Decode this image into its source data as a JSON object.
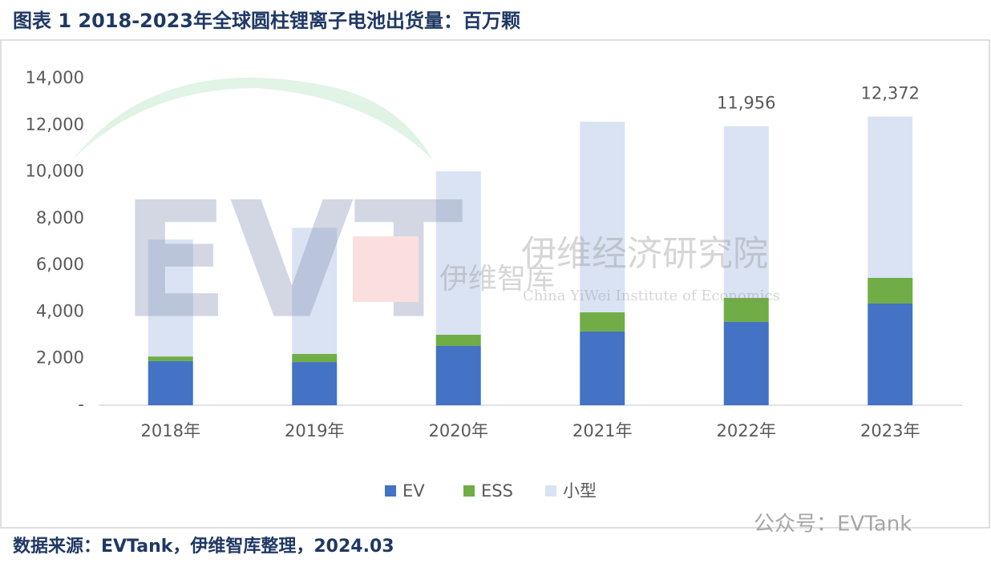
{
  "header": {
    "title": "图表 1 2018-2023年全球圆柱锂离子电池出货量：百万颗"
  },
  "source": "数据来源：EVTank，伊维智库整理，2024.03",
  "watermark": {
    "name": "伊维经济研究院",
    "english": "China YiWei Institute of Economics",
    "short": "伊维智库",
    "account": "公众号：EVTank"
  },
  "chart_data": {
    "type": "stacked-bar",
    "categories": [
      "2018年",
      "2019年",
      "2020年",
      "2021年",
      "2022年",
      "2023年"
    ],
    "series": [
      {
        "name": "EV",
        "color": "#4472c4",
        "values": [
          1890,
          1850,
          2540,
          3160,
          3570,
          4360
        ]
      },
      {
        "name": "ESS",
        "color": "#70ad47",
        "values": [
          200,
          350,
          480,
          820,
          1030,
          1100
        ]
      },
      {
        "name": "小型",
        "color": "#dae3f3",
        "values": [
          5010,
          5400,
          7000,
          8170,
          7356,
          6912
        ]
      }
    ],
    "totals": [
      null,
      null,
      null,
      null,
      11956,
      12372
    ],
    "total_labels": [
      null,
      null,
      null,
      null,
      "11,956",
      "12,372"
    ],
    "ylim": [
      0,
      14000
    ],
    "yticks": [
      {
        "value": 0,
        "label": "-"
      },
      {
        "value": 2000,
        "label": "2,000"
      },
      {
        "value": 4000,
        "label": "4,000"
      },
      {
        "value": 6000,
        "label": "6,000"
      },
      {
        "value": 8000,
        "label": "8,000"
      },
      {
        "value": 10000,
        "label": "10,000"
      },
      {
        "value": 12000,
        "label": "12,000"
      },
      {
        "value": 14000,
        "label": "14,000"
      }
    ],
    "legend": "bottom"
  }
}
